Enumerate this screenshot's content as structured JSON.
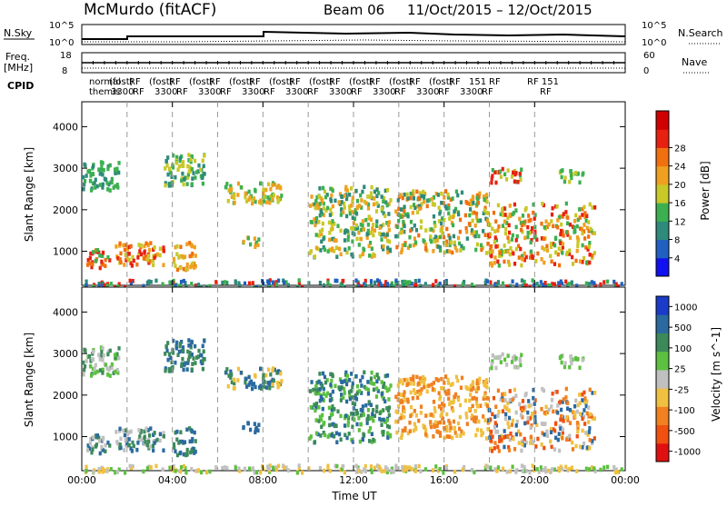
{
  "header": {
    "station": "McMurdo (fitACF)",
    "beam": "Beam 06",
    "date_range": "11/Oct/2015 – 12/Oct/2015"
  },
  "top_panels": {
    "nsky_label": "N.Sky",
    "nsearch_label": "N.Search",
    "nsky_ticks": [
      "10^5",
      "10^0"
    ],
    "nsearch_ticks": [
      "10^5",
      "10^0"
    ],
    "freq_label_1": "Freq.",
    "freq_label_2": "[MHz]",
    "freq_ticks": [
      "18",
      "8"
    ],
    "nave_label": "Nave",
    "nave_ticks": [
      "60",
      "0"
    ],
    "cpid_label": "CPID",
    "cpid_row1": [
      "normal",
      "(fost)",
      "RF",
      "(fost)",
      "RF",
      "(fost)",
      "RF",
      "(fost)",
      "RF",
      "(fost)",
      "RF",
      "(fost)",
      "RF",
      "(fost)",
      "RF",
      "(fost)",
      "RF",
      "(fost)",
      "RF",
      "151",
      "RF"
    ],
    "cpid_row2": [
      "themis",
      "3300",
      "RF",
      "3300",
      "RF",
      "3300",
      "RF",
      "3300",
      "RF",
      "3300",
      "RF",
      "3300",
      "RF",
      "3300",
      "RF",
      "3300",
      "RF",
      "3300",
      "RF"
    ],
    "cpid_tail": [
      "RF 151",
      "RF"
    ]
  },
  "chart_data": [
    {
      "type": "heatmap",
      "name": "power",
      "ylabel": "Slant Range [km]",
      "x_ticks": [
        "00:00",
        "04:00",
        "08:00",
        "12:00",
        "16:00",
        "20:00",
        "00:00"
      ],
      "x_hours": [
        0,
        4,
        8,
        12,
        16,
        20,
        24
      ],
      "y_ticks": [
        1000,
        2000,
        3000,
        4000
      ],
      "ylim": [
        180,
        4600
      ],
      "xlim_hours": [
        0,
        24
      ],
      "colorbar_label": "Power [dB]",
      "colorbar_ticks": [
        "4",
        "8",
        "12",
        "16",
        "20",
        "24",
        "28"
      ],
      "colorbar_colors": [
        "#1010f0",
        "#2060c0",
        "#2e8a7a",
        "#3cb050",
        "#c8c828",
        "#f0a020",
        "#f07010",
        "#e82010",
        "#d00000"
      ]
    },
    {
      "type": "heatmap",
      "name": "velocity",
      "ylabel": "Slant Range [km]",
      "xlabel": "Time UT",
      "x_ticks": [
        "00:00",
        "04:00",
        "08:00",
        "12:00",
        "16:00",
        "20:00",
        "00:00"
      ],
      "x_hours": [
        0,
        4,
        8,
        12,
        16,
        20,
        24
      ],
      "y_ticks": [
        1000,
        2000,
        3000,
        4000
      ],
      "ylim": [
        180,
        4600
      ],
      "xlim_hours": [
        0,
        24
      ],
      "colorbar_label": "Velocity [m s^-1]",
      "colorbar_ticks": [
        "1000",
        "500",
        "100",
        "25",
        "-25",
        "-100",
        "-500",
        "-1000"
      ],
      "colorbar_colors": [
        "#1a3cc8",
        "#2a6aa0",
        "#3c8a5a",
        "#5cc040",
        "#c0c0c0",
        "#f0c040",
        "#f08020",
        "#f05010",
        "#e01010"
      ]
    }
  ],
  "dashed_vlines_hours": [
    2,
    4,
    6,
    8,
    10,
    12,
    14,
    16,
    18,
    20
  ],
  "scatter_regions": [
    {
      "panel": "both",
      "h0": 0.1,
      "h1": 1.2,
      "r0": 600,
      "r1": 1100,
      "p": [
        18,
        24,
        28
      ],
      "v": [
        100,
        500,
        -25
      ]
    },
    {
      "panel": "both",
      "h0": 1.4,
      "h1": 3.6,
      "r0": 700,
      "r1": 1250,
      "p": [
        16,
        20,
        28,
        24
      ],
      "v": [
        100,
        500,
        -25
      ]
    },
    {
      "panel": "both",
      "h0": 4.0,
      "h1": 5.0,
      "r0": 600,
      "r1": 1300,
      "p": [
        16,
        20,
        24
      ],
      "v": [
        100,
        500
      ]
    },
    {
      "panel": "both",
      "h0": 0.0,
      "h1": 1.6,
      "r0": 2500,
      "r1": 3200,
      "p": [
        8,
        12
      ],
      "v": [
        100,
        -25,
        25
      ]
    },
    {
      "panel": "both",
      "h0": 3.6,
      "h1": 5.4,
      "r0": 2600,
      "r1": 3400,
      "p": [
        8,
        12,
        16
      ],
      "v": [
        500,
        100
      ]
    },
    {
      "panel": "both",
      "h0": 6.2,
      "h1": 8.8,
      "r0": 2200,
      "r1": 2700,
      "p": [
        12,
        16,
        20
      ],
      "v": [
        500,
        100,
        -100
      ]
    },
    {
      "panel": "both",
      "h0": 7.0,
      "h1": 7.8,
      "r0": 1150,
      "r1": 1400,
      "p": [
        12,
        20
      ],
      "v": [
        500
      ]
    },
    {
      "panel": "both",
      "h0": 10.0,
      "h1": 13.6,
      "r0": 900,
      "r1": 2600,
      "p": [
        8,
        12,
        16,
        20
      ],
      "v": [
        100,
        500,
        25
      ]
    },
    {
      "panel": "both",
      "h0": 13.8,
      "h1": 18.0,
      "r0": 1000,
      "r1": 2500,
      "p": [
        8,
        12,
        16,
        20,
        24
      ],
      "v": [
        -100,
        -500
      ]
    },
    {
      "panel": "both",
      "h0": 17.9,
      "h1": 22.6,
      "r0": 700,
      "r1": 2200,
      "p": [
        12,
        16,
        20,
        24,
        28
      ],
      "v": [
        -100,
        -500,
        -1000,
        500,
        -25
      ]
    },
    {
      "panel": "both",
      "h0": 18.0,
      "h1": 19.4,
      "r0": 2700,
      "r1": 3050,
      "p": [
        12,
        16,
        28
      ],
      "v": [
        -25,
        25
      ]
    },
    {
      "panel": "both",
      "h0": 21.0,
      "h1": 22.2,
      "r0": 2700,
      "r1": 3000,
      "p": [
        12,
        16
      ],
      "v": [
        -25,
        25
      ]
    },
    {
      "panel": "both",
      "h0": 0.0,
      "h1": 24.0,
      "r0": 180,
      "r1": 350,
      "p": [
        4,
        8,
        12,
        28
      ],
      "v": [
        -25,
        25,
        -100
      ]
    }
  ]
}
